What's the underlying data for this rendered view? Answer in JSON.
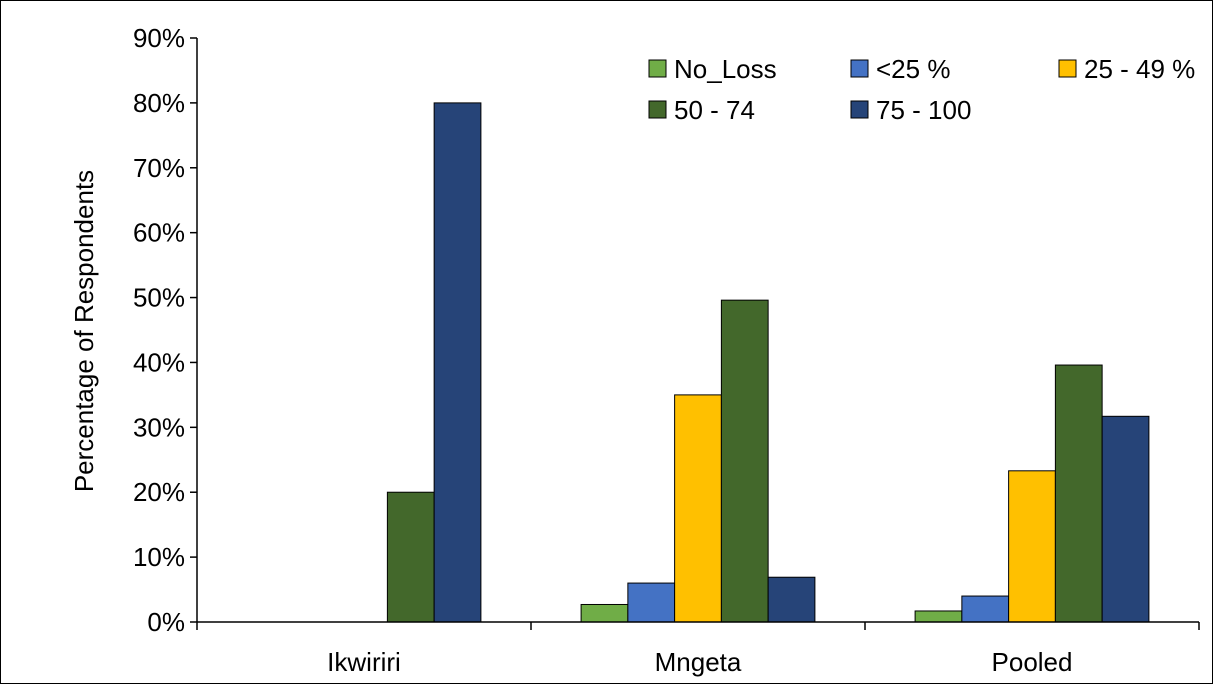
{
  "chart_data": {
    "type": "bar",
    "title": "",
    "xlabel": "",
    "ylabel": "Percentage of Respondents",
    "ylim": [
      0,
      90
    ],
    "yticks": [
      "0%",
      "10%",
      "20%",
      "30%",
      "40%",
      "50%",
      "60%",
      "70%",
      "80%",
      "90%"
    ],
    "categories": [
      "Ikwiriri",
      "Mngeta",
      "Pooled"
    ],
    "series": [
      {
        "name": "No_Loss",
        "color": "#70ad47",
        "values": [
          0,
          2.7,
          1.7
        ]
      },
      {
        "name": "<25 %",
        "color": "#4472c4",
        "values": [
          0,
          6.0,
          4.0
        ]
      },
      {
        "name": "25 - 49 %",
        "color": "#ffc000",
        "values": [
          0,
          35.0,
          23.3
        ]
      },
      {
        "name": "50 - 74",
        "color": "#43682b",
        "values": [
          20.0,
          49.6,
          39.6
        ]
      },
      {
        "name": "75 - 100",
        "color": "#264478",
        "values": [
          80.0,
          6.9,
          31.7
        ]
      }
    ],
    "grid": false,
    "legend_position": "top-right"
  }
}
